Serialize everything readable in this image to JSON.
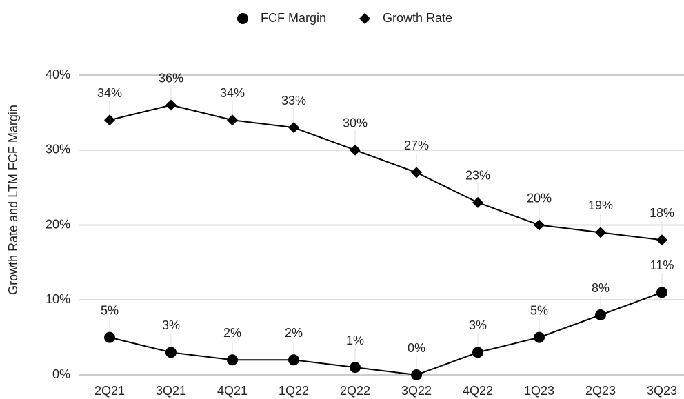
{
  "chart_data": {
    "type": "line",
    "y_label": "Growth Rate and LTM FCF Margin",
    "categories": [
      "2Q21",
      "3Q21",
      "4Q21",
      "1Q22",
      "2Q22",
      "3Q22",
      "4Q22",
      "1Q23",
      "2Q23",
      "3Q23"
    ],
    "series": [
      {
        "name": "FCF Margin",
        "color": "#000000",
        "marker": "circle",
        "values": [
          5,
          3,
          2,
          2,
          1,
          0,
          3,
          5,
          8,
          11
        ],
        "value_labels": [
          "5%",
          "3%",
          "2%",
          "2%",
          "1%",
          "0%",
          "3%",
          "5%",
          "8%",
          "11%"
        ]
      },
      {
        "name": "Growth Rate",
        "color": "#000000",
        "marker": "diamond",
        "values": [
          34,
          36,
          34,
          33,
          30,
          27,
          23,
          20,
          19,
          18
        ],
        "value_labels": [
          "34%",
          "36%",
          "34%",
          "33%",
          "30%",
          "27%",
          "23%",
          "20%",
          "19%",
          "18%"
        ]
      }
    ],
    "ylim": [
      0,
      40
    ],
    "yticks": [
      {
        "value": 0,
        "label": "0%"
      },
      {
        "value": 10,
        "label": "10%"
      },
      {
        "value": 20,
        "label": "20%"
      },
      {
        "value": 30,
        "label": "30%"
      },
      {
        "value": 40,
        "label": "40%"
      }
    ],
    "grid": true,
    "legend": "top"
  }
}
